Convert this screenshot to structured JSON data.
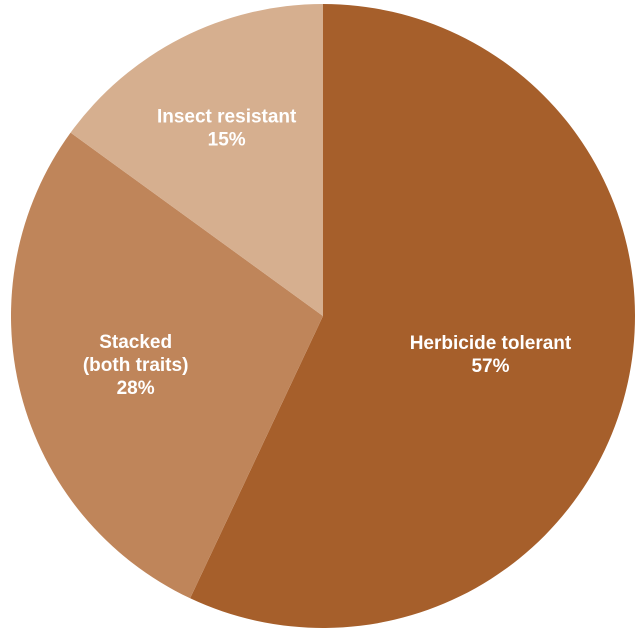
{
  "chart_data": {
    "type": "pie",
    "title": "",
    "start_angle_deg": 0,
    "direction": "clockwise",
    "slices": [
      {
        "name": "Herbicide tolerant",
        "value": 57,
        "label": "57%",
        "name_lines": [
          "Herbicide tolerant"
        ],
        "color": "#A65F2B"
      },
      {
        "name": "Stacked (both traits)",
        "value": 28,
        "label": "28%",
        "name_lines": [
          "Stacked",
          "(both traits)"
        ],
        "color": "#BF855A"
      },
      {
        "name": "Insect resistant",
        "value": 15,
        "label": "15%",
        "name_lines": [
          "Insect resistant"
        ],
        "color": "#D6AF8F"
      }
    ]
  }
}
